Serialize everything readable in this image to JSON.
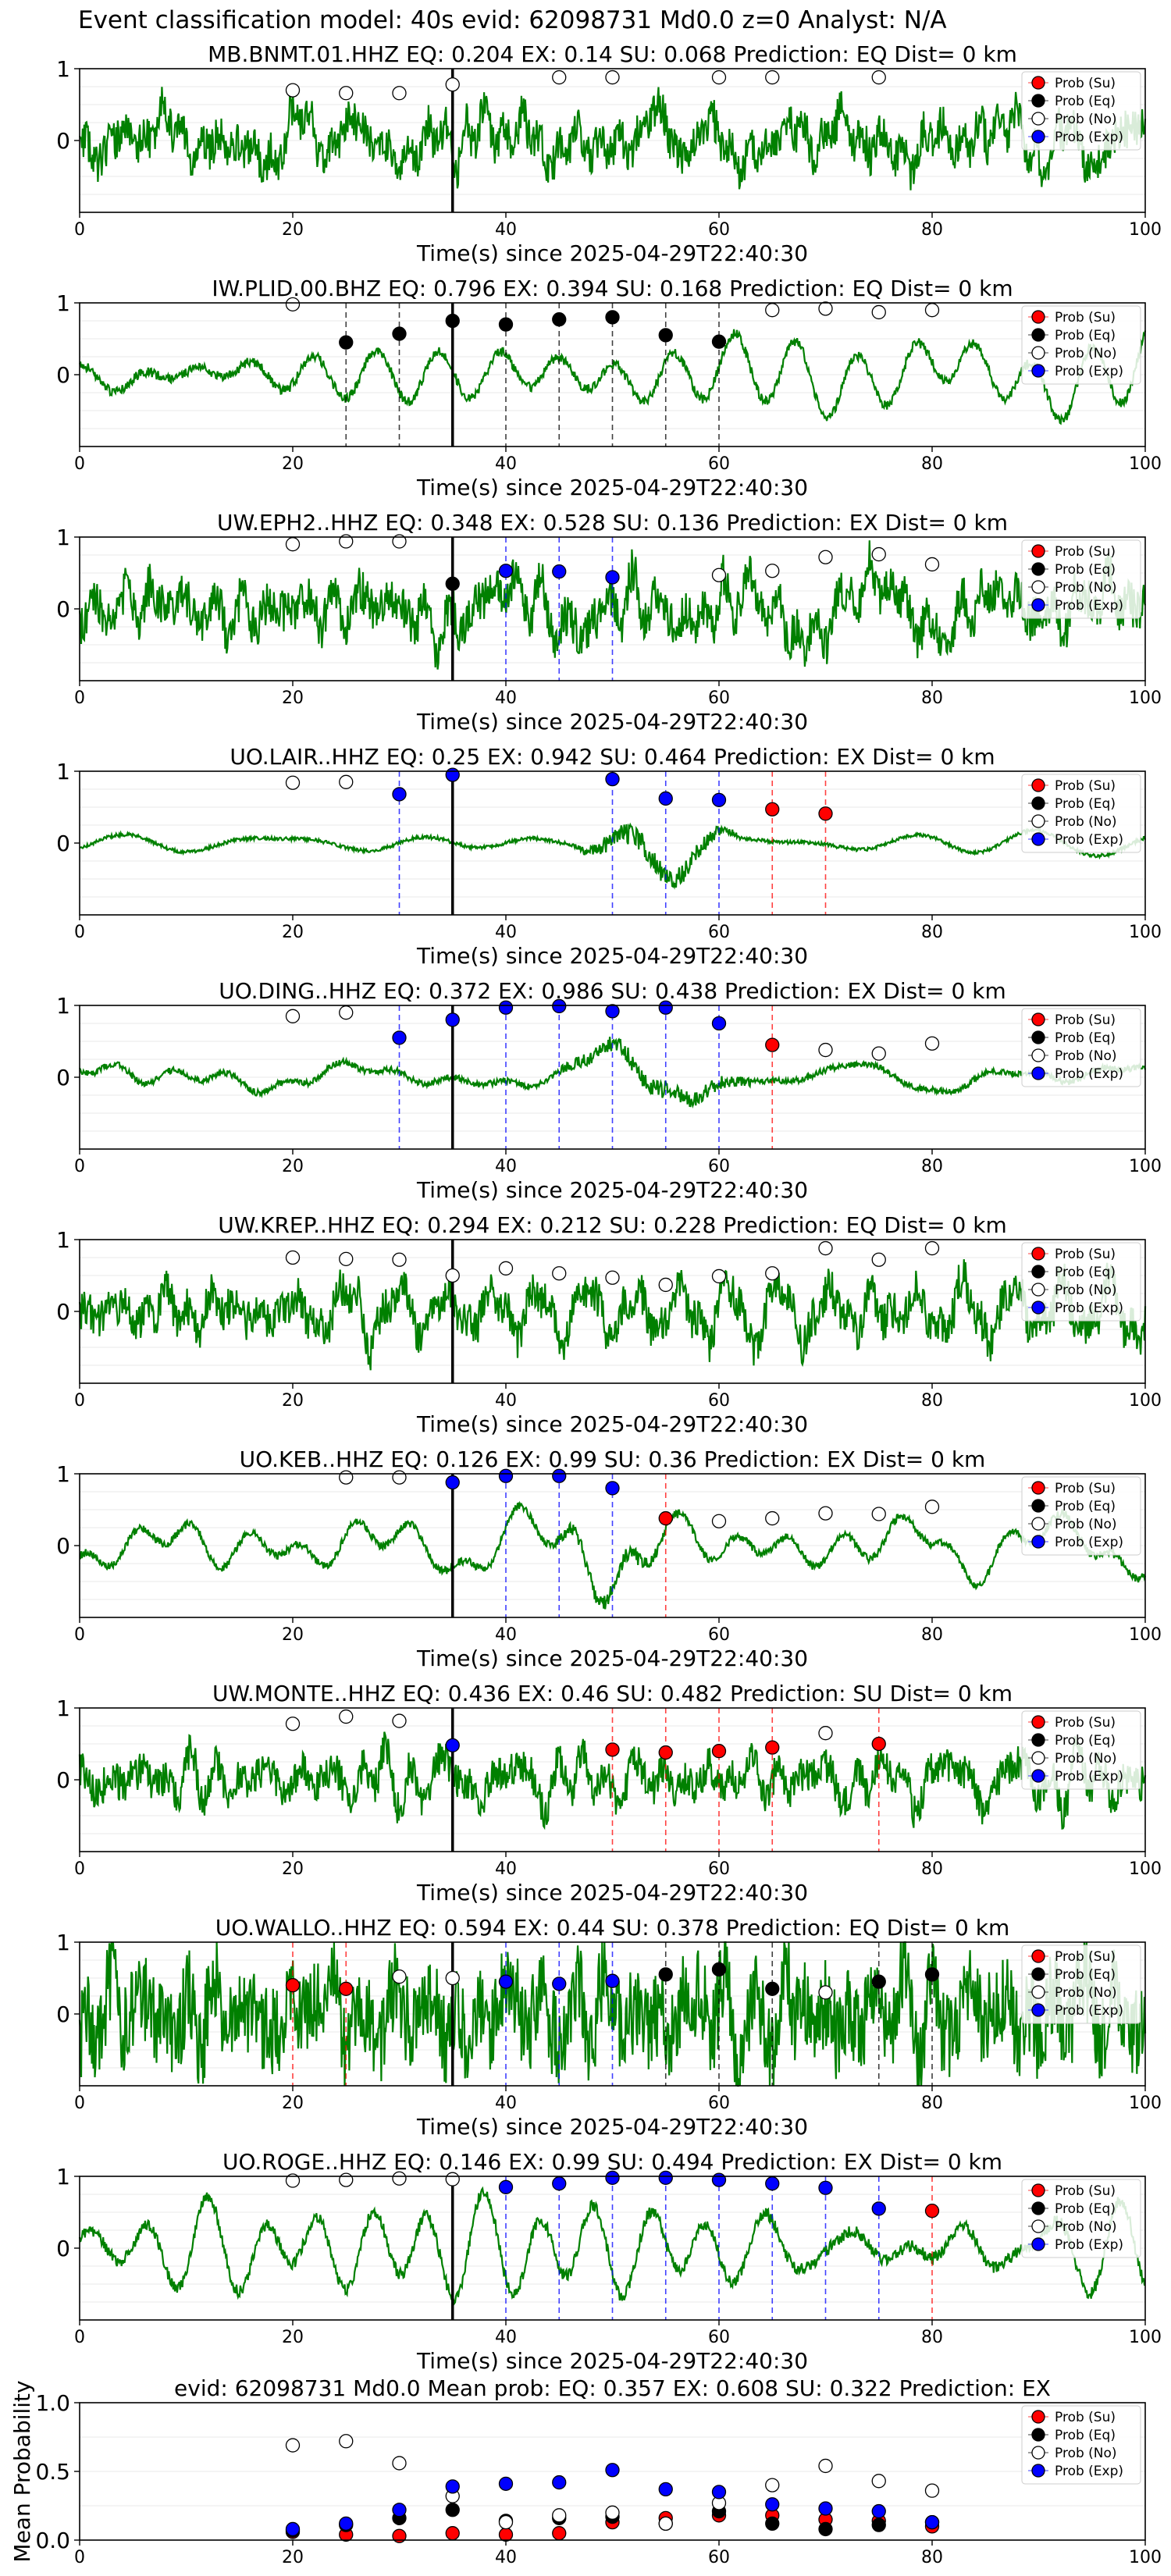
{
  "figure": {
    "title": "Event classification model: 40s evid: 62098731 Md0.0 z=0 Analyst: N/A",
    "colors": {
      "waveform": "#008000",
      "su": "#ff0000",
      "eq": "#000000",
      "no": "#ffffff",
      "exp": "#0000ff",
      "arrival": "#000000"
    }
  },
  "legend": {
    "entries": [
      {
        "label": "Prob (Su)",
        "key": "su"
      },
      {
        "label": "Prob (Eq)",
        "key": "eq"
      },
      {
        "label": "Prob (No)",
        "key": "no"
      },
      {
        "label": "Prob (Exp)",
        "key": "exp"
      }
    ],
    "placement": "top-right"
  },
  "chart_data": [
    {
      "type": "line",
      "title": "MB.BNMT.01.HHZ   EQ: 0.204  EX: 0.14  SU: 0.068   Prediction: EQ    Dist= 0 km",
      "xlabel": "Time(s) since 2025-04-29T22:40:30",
      "xlim": [
        0,
        100
      ],
      "ylim": [
        -1,
        1
      ],
      "xticks": [
        "0",
        "20",
        "40",
        "60",
        "80",
        "100"
      ],
      "yticks": [
        "1",
        "0"
      ],
      "waveform": {
        "style": "broadband",
        "amplitude": 0.5,
        "seed": 11
      },
      "arrival_time": 35,
      "probabilities": [
        {
          "x": 20,
          "value": 0.7,
          "class": "no"
        },
        {
          "x": 25,
          "value": 0.66,
          "class": "no"
        },
        {
          "x": 30,
          "value": 0.66,
          "class": "no"
        },
        {
          "x": 35,
          "value": 0.78,
          "class": "no"
        },
        {
          "x": 45,
          "value": 0.88,
          "class": "no"
        },
        {
          "x": 50,
          "value": 0.88,
          "class": "no"
        },
        {
          "x": 60,
          "value": 0.88,
          "class": "no"
        },
        {
          "x": 65,
          "value": 0.88,
          "class": "no"
        },
        {
          "x": 75,
          "value": 0.88,
          "class": "no"
        }
      ]
    },
    {
      "type": "line",
      "title": "IW.PLID.00.BHZ   EQ: 0.796  EX: 0.394  SU: 0.168   Prediction: EQ    Dist= 0 km",
      "xlabel": "Time(s) since 2025-04-29T22:40:30",
      "xlim": [
        0,
        100
      ],
      "ylim": [
        -1,
        1
      ],
      "xticks": [
        "0",
        "20",
        "40",
        "60",
        "80",
        "100"
      ],
      "yticks": [
        "1",
        "0"
      ],
      "waveform": {
        "style": "smooth",
        "amplitude": 0.55,
        "seed": 23
      },
      "arrival_time": 35,
      "probabilities": [
        {
          "x": 20,
          "value": 0.98,
          "class": "no"
        },
        {
          "x": 25,
          "value": 0.45,
          "class": "eq"
        },
        {
          "x": 30,
          "value": 0.57,
          "class": "eq"
        },
        {
          "x": 35,
          "value": 0.75,
          "class": "eq"
        },
        {
          "x": 40,
          "value": 0.7,
          "class": "eq"
        },
        {
          "x": 45,
          "value": 0.77,
          "class": "eq"
        },
        {
          "x": 50,
          "value": 0.8,
          "class": "eq"
        },
        {
          "x": 55,
          "value": 0.55,
          "class": "eq"
        },
        {
          "x": 60,
          "value": 0.46,
          "class": "eq"
        },
        {
          "x": 65,
          "value": 0.9,
          "class": "no"
        },
        {
          "x": 70,
          "value": 0.92,
          "class": "no"
        },
        {
          "x": 75,
          "value": 0.87,
          "class": "no"
        },
        {
          "x": 80,
          "value": 0.9,
          "class": "no"
        }
      ]
    },
    {
      "type": "line",
      "title": "UW.EPH2..HHZ   EQ: 0.348  EX: 0.528  SU: 0.136   Prediction: EX    Dist= 0 km",
      "xlabel": "Time(s) since 2025-04-29T22:40:30",
      "xlim": [
        0,
        100
      ],
      "ylim": [
        -1,
        1
      ],
      "xticks": [
        "0",
        "20",
        "40",
        "60",
        "80",
        "100"
      ],
      "yticks": [
        "1",
        "0"
      ],
      "waveform": {
        "style": "broadband",
        "amplitude": 0.55,
        "seed": 37
      },
      "arrival_time": 35,
      "probabilities": [
        {
          "x": 20,
          "value": 0.9,
          "class": "no"
        },
        {
          "x": 25,
          "value": 0.94,
          "class": "no"
        },
        {
          "x": 30,
          "value": 0.94,
          "class": "no"
        },
        {
          "x": 35,
          "value": 0.35,
          "class": "eq"
        },
        {
          "x": 40,
          "value": 0.53,
          "class": "exp"
        },
        {
          "x": 45,
          "value": 0.52,
          "class": "exp"
        },
        {
          "x": 50,
          "value": 0.44,
          "class": "exp"
        },
        {
          "x": 60,
          "value": 0.47,
          "class": "no"
        },
        {
          "x": 65,
          "value": 0.53,
          "class": "no"
        },
        {
          "x": 70,
          "value": 0.72,
          "class": "no"
        },
        {
          "x": 75,
          "value": 0.76,
          "class": "no"
        },
        {
          "x": 80,
          "value": 0.62,
          "class": "no"
        }
      ]
    },
    {
      "type": "line",
      "title": "UO.LAIR..HHZ   EQ: 0.25  EX: 0.942  SU: 0.464   Prediction: EX    Dist= 0 km",
      "xlabel": "Time(s) since 2025-04-29T22:40:30",
      "xlim": [
        0,
        100
      ],
      "ylim": [
        -1,
        1
      ],
      "xticks": [
        "0",
        "20",
        "40",
        "60",
        "80",
        "100"
      ],
      "yticks": [
        "1",
        "0"
      ],
      "waveform": {
        "style": "quiet-burst",
        "amplitude": 0.2,
        "burst_amplitude": 0.95,
        "burst_start": 46,
        "burst_end": 62,
        "seed": 41
      },
      "arrival_time": 35,
      "probabilities": [
        {
          "x": 20,
          "value": 0.84,
          "class": "no"
        },
        {
          "x": 25,
          "value": 0.85,
          "class": "no"
        },
        {
          "x": 30,
          "value": 0.68,
          "class": "exp"
        },
        {
          "x": 35,
          "value": 0.95,
          "class": "exp"
        },
        {
          "x": 50,
          "value": 0.89,
          "class": "exp"
        },
        {
          "x": 55,
          "value": 0.62,
          "class": "exp"
        },
        {
          "x": 60,
          "value": 0.6,
          "class": "exp"
        },
        {
          "x": 65,
          "value": 0.47,
          "class": "su"
        },
        {
          "x": 70,
          "value": 0.41,
          "class": "su"
        }
      ]
    },
    {
      "type": "line",
      "title": "UO.DING..HHZ   EQ: 0.372  EX: 0.986  SU: 0.438   Prediction: EX    Dist= 0 km",
      "xlabel": "Time(s) since 2025-04-29T22:40:30",
      "xlim": [
        0,
        100
      ],
      "ylim": [
        -1,
        1
      ],
      "xticks": [
        "0",
        "20",
        "40",
        "60",
        "80",
        "100"
      ],
      "yticks": [
        "1",
        "0"
      ],
      "waveform": {
        "style": "smooth-burst",
        "amplitude": 0.35,
        "burst_amplitude": 0.8,
        "burst_start": 44,
        "burst_end": 64,
        "seed": 53
      },
      "arrival_time": 35,
      "probabilities": [
        {
          "x": 20,
          "value": 0.85,
          "class": "no"
        },
        {
          "x": 25,
          "value": 0.9,
          "class": "no"
        },
        {
          "x": 30,
          "value": 0.55,
          "class": "exp"
        },
        {
          "x": 35,
          "value": 0.8,
          "class": "exp"
        },
        {
          "x": 40,
          "value": 0.97,
          "class": "exp"
        },
        {
          "x": 45,
          "value": 0.99,
          "class": "exp"
        },
        {
          "x": 50,
          "value": 0.92,
          "class": "exp"
        },
        {
          "x": 55,
          "value": 0.97,
          "class": "exp"
        },
        {
          "x": 60,
          "value": 0.75,
          "class": "exp"
        },
        {
          "x": 65,
          "value": 0.45,
          "class": "su"
        },
        {
          "x": 70,
          "value": 0.38,
          "class": "no"
        },
        {
          "x": 75,
          "value": 0.33,
          "class": "no"
        },
        {
          "x": 80,
          "value": 0.47,
          "class": "no"
        }
      ]
    },
    {
      "type": "line",
      "title": "UW.KREP..HHZ   EQ: 0.294  EX: 0.212  SU: 0.228   Prediction: EQ    Dist= 0 km",
      "xlabel": "Time(s) since 2025-04-29T22:40:30",
      "xlim": [
        0,
        100
      ],
      "ylim": [
        -1,
        1
      ],
      "xticks": [
        "0",
        "20",
        "40",
        "60",
        "80",
        "100"
      ],
      "yticks": [
        "1",
        "0"
      ],
      "waveform": {
        "style": "broadband",
        "amplitude": 0.5,
        "seed": 67
      },
      "arrival_time": 35,
      "probabilities": [
        {
          "x": 20,
          "value": 0.75,
          "class": "no"
        },
        {
          "x": 25,
          "value": 0.73,
          "class": "no"
        },
        {
          "x": 30,
          "value": 0.72,
          "class": "no"
        },
        {
          "x": 35,
          "value": 0.5,
          "class": "no"
        },
        {
          "x": 40,
          "value": 0.6,
          "class": "no"
        },
        {
          "x": 45,
          "value": 0.53,
          "class": "no"
        },
        {
          "x": 50,
          "value": 0.47,
          "class": "no"
        },
        {
          "x": 55,
          "value": 0.37,
          "class": "no"
        },
        {
          "x": 60,
          "value": 0.49,
          "class": "no"
        },
        {
          "x": 65,
          "value": 0.53,
          "class": "no"
        },
        {
          "x": 70,
          "value": 0.88,
          "class": "no"
        },
        {
          "x": 75,
          "value": 0.72,
          "class": "no"
        },
        {
          "x": 80,
          "value": 0.88,
          "class": "no"
        }
      ]
    },
    {
      "type": "line",
      "title": "UO.KEB..HHZ   EQ: 0.126  EX: 0.99  SU: 0.36   Prediction: EX    Dist= 0 km",
      "xlabel": "Time(s) since 2025-04-29T22:40:30",
      "xlim": [
        0,
        100
      ],
      "ylim": [
        -1,
        1
      ],
      "xticks": [
        "0",
        "20",
        "40",
        "60",
        "80",
        "100"
      ],
      "yticks": [
        "1",
        "0"
      ],
      "waveform": {
        "style": "smooth-burst",
        "amplitude": 0.45,
        "burst_amplitude": 0.75,
        "burst_start": 44,
        "burst_end": 56,
        "seed": 79
      },
      "arrival_time": 35,
      "probabilities": [
        {
          "x": 25,
          "value": 0.95,
          "class": "no"
        },
        {
          "x": 30,
          "value": 0.95,
          "class": "no"
        },
        {
          "x": 35,
          "value": 0.88,
          "class": "exp"
        },
        {
          "x": 40,
          "value": 0.97,
          "class": "exp"
        },
        {
          "x": 45,
          "value": 0.97,
          "class": "exp"
        },
        {
          "x": 50,
          "value": 0.8,
          "class": "exp"
        },
        {
          "x": 55,
          "value": 0.38,
          "class": "su"
        },
        {
          "x": 60,
          "value": 0.34,
          "class": "no"
        },
        {
          "x": 65,
          "value": 0.38,
          "class": "no"
        },
        {
          "x": 70,
          "value": 0.45,
          "class": "no"
        },
        {
          "x": 75,
          "value": 0.44,
          "class": "no"
        },
        {
          "x": 80,
          "value": 0.54,
          "class": "no"
        }
      ]
    },
    {
      "type": "line",
      "title": "UW.MONTE..HHZ   EQ: 0.436  EX: 0.46  SU: 0.482   Prediction: SU    Dist= 0 km",
      "xlabel": "Time(s) since 2025-04-29T22:40:30",
      "xlim": [
        0,
        100
      ],
      "ylim": [
        -1,
        1
      ],
      "xticks": [
        "0",
        "20",
        "40",
        "60",
        "80",
        "100"
      ],
      "yticks": [
        "1",
        "0"
      ],
      "waveform": {
        "style": "broadband",
        "amplitude": 0.45,
        "seed": 83
      },
      "arrival_time": 35,
      "probabilities": [
        {
          "x": 20,
          "value": 0.78,
          "class": "no"
        },
        {
          "x": 25,
          "value": 0.88,
          "class": "no"
        },
        {
          "x": 30,
          "value": 0.82,
          "class": "no"
        },
        {
          "x": 35,
          "value": 0.48,
          "class": "exp"
        },
        {
          "x": 50,
          "value": 0.42,
          "class": "su"
        },
        {
          "x": 55,
          "value": 0.38,
          "class": "su"
        },
        {
          "x": 60,
          "value": 0.4,
          "class": "su"
        },
        {
          "x": 65,
          "value": 0.45,
          "class": "su"
        },
        {
          "x": 70,
          "value": 0.65,
          "class": "no"
        },
        {
          "x": 75,
          "value": 0.5,
          "class": "su"
        }
      ]
    },
    {
      "type": "line",
      "title": "UO.WALLO..HHZ   EQ: 0.594  EX: 0.44  SU: 0.378   Prediction: EQ    Dist= 0 km",
      "xlabel": "Time(s) since 2025-04-29T22:40:30",
      "xlim": [
        0,
        100
      ],
      "ylim": [
        -1,
        1
      ],
      "xticks": [
        "0",
        "20",
        "40",
        "60",
        "80",
        "100"
      ],
      "yticks": [
        "1",
        "0"
      ],
      "waveform": {
        "style": "dense",
        "amplitude": 0.7,
        "seed": 97
      },
      "arrival_time": 35,
      "probabilities": [
        {
          "x": 20,
          "value": 0.4,
          "class": "su"
        },
        {
          "x": 25,
          "value": 0.35,
          "class": "su"
        },
        {
          "x": 30,
          "value": 0.52,
          "class": "no"
        },
        {
          "x": 35,
          "value": 0.5,
          "class": "no"
        },
        {
          "x": 40,
          "value": 0.45,
          "class": "exp"
        },
        {
          "x": 45,
          "value": 0.42,
          "class": "exp"
        },
        {
          "x": 50,
          "value": 0.46,
          "class": "exp"
        },
        {
          "x": 55,
          "value": 0.55,
          "class": "eq"
        },
        {
          "x": 60,
          "value": 0.62,
          "class": "eq"
        },
        {
          "x": 65,
          "value": 0.35,
          "class": "eq"
        },
        {
          "x": 70,
          "value": 0.3,
          "class": "no"
        },
        {
          "x": 75,
          "value": 0.45,
          "class": "eq"
        },
        {
          "x": 80,
          "value": 0.55,
          "class": "eq"
        }
      ]
    },
    {
      "type": "line",
      "title": "UO.ROGE..HHZ   EQ: 0.146  EX: 0.99  SU: 0.494   Prediction: EX    Dist= 0 km",
      "xlabel": "Time(s) since 2025-04-29T22:40:30",
      "xlim": [
        0,
        100
      ],
      "ylim": [
        -1,
        1
      ],
      "xticks": [
        "0",
        "20",
        "40",
        "60",
        "80",
        "100"
      ],
      "yticks": [
        "1",
        "0"
      ],
      "waveform": {
        "style": "smooth",
        "amplitude": 0.7,
        "seed": 101
      },
      "arrival_time": 35,
      "probabilities": [
        {
          "x": 20,
          "value": 0.94,
          "class": "no"
        },
        {
          "x": 25,
          "value": 0.95,
          "class": "no"
        },
        {
          "x": 30,
          "value": 0.97,
          "class": "no"
        },
        {
          "x": 35,
          "value": 0.96,
          "class": "no"
        },
        {
          "x": 40,
          "value": 0.85,
          "class": "exp"
        },
        {
          "x": 45,
          "value": 0.9,
          "class": "exp"
        },
        {
          "x": 50,
          "value": 0.98,
          "class": "exp"
        },
        {
          "x": 55,
          "value": 0.98,
          "class": "exp"
        },
        {
          "x": 60,
          "value": 0.95,
          "class": "exp"
        },
        {
          "x": 65,
          "value": 0.9,
          "class": "exp"
        },
        {
          "x": 70,
          "value": 0.84,
          "class": "exp"
        },
        {
          "x": 75,
          "value": 0.55,
          "class": "exp"
        },
        {
          "x": 80,
          "value": 0.52,
          "class": "su"
        }
      ]
    },
    {
      "type": "scatter",
      "title": "evid: 62098731  Md0.0   Mean prob:   EQ: 0.357  EX: 0.608  SU: 0.322   Prediction: EX",
      "xlabel": "",
      "ylabel": "Mean Probability",
      "xlim": [
        0,
        100
      ],
      "ylim": [
        0,
        1
      ],
      "xticks": [
        "0",
        "20",
        "40",
        "60",
        "80",
        "100"
      ],
      "yticks": [
        "0.0",
        "0.5",
        "1.0"
      ],
      "grid": "horizontal",
      "x": [
        20,
        25,
        30,
        35,
        40,
        45,
        50,
        55,
        60,
        65,
        70,
        75,
        80
      ],
      "series": [
        {
          "key": "su",
          "name": "Prob (Su)",
          "values": [
            0.06,
            0.04,
            0.03,
            0.05,
            0.04,
            0.05,
            0.13,
            0.16,
            0.18,
            0.18,
            0.15,
            0.14,
            0.1
          ]
        },
        {
          "key": "eq",
          "name": "Prob (Eq)",
          "values": [
            0.07,
            0.11,
            0.16,
            0.22,
            0.14,
            0.16,
            0.17,
            0.12,
            0.21,
            0.12,
            0.08,
            0.11,
            0.13
          ]
        },
        {
          "key": "no",
          "name": "Prob (No)",
          "values": [
            0.69,
            0.72,
            0.56,
            0.32,
            0.13,
            0.18,
            0.2,
            0.12,
            0.27,
            0.4,
            0.54,
            0.43,
            0.36
          ]
        },
        {
          "key": "exp",
          "name": "Prob (Exp)",
          "values": [
            0.08,
            0.12,
            0.22,
            0.39,
            0.41,
            0.42,
            0.51,
            0.37,
            0.35,
            0.26,
            0.23,
            0.21,
            0.13
          ]
        }
      ]
    }
  ]
}
